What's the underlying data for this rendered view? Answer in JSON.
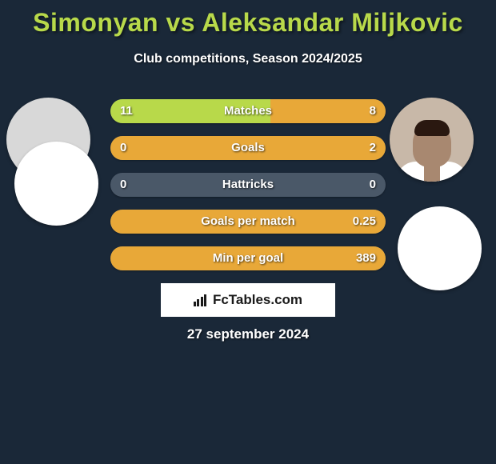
{
  "title": "Simonyan vs Aleksandar Miljkovic",
  "subtitle": "Club competitions, Season 2024/2025",
  "date": "27 september 2024",
  "logo_text": "FcTables.com",
  "colors": {
    "background": "#1a2838",
    "accent_title": "#b8d94a",
    "bar_left": "#b8d94a",
    "bar_right": "#e8a838",
    "bar_bg": "#4a5868",
    "text": "#ffffff"
  },
  "stats": [
    {
      "label": "Matches",
      "left_value": "11",
      "right_value": "8",
      "left_pct": 58,
      "right_pct": 42
    },
    {
      "label": "Goals",
      "left_value": "0",
      "right_value": "2",
      "left_pct": 0,
      "right_pct": 100
    },
    {
      "label": "Hattricks",
      "left_value": "0",
      "right_value": "0",
      "left_pct": 0,
      "right_pct": 0
    },
    {
      "label": "Goals per match",
      "left_value": "",
      "right_value": "0.25",
      "left_pct": 0,
      "right_pct": 100
    },
    {
      "label": "Min per goal",
      "left_value": "",
      "right_value": "389",
      "left_pct": 0,
      "right_pct": 100
    }
  ]
}
